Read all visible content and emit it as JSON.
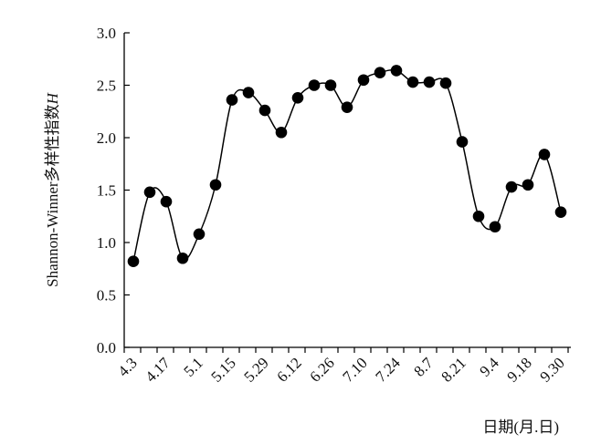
{
  "chart_data": {
    "type": "line",
    "title": "",
    "xlabel": "日期(月.日)",
    "ylabel": "Shannon-Winner多样性指数",
    "ylabel_symbol": "H",
    "ylim": [
      0,
      3.0
    ],
    "yticks": [
      "0.0",
      "0.5",
      "1.0",
      "1.5",
      "2.0",
      "2.5",
      "3.0"
    ],
    "xtick_labels": [
      "4.3",
      "4.17",
      "5.1",
      "5.15",
      "5.29",
      "6.12",
      "6.26",
      "7.10",
      "7.24",
      "8.7",
      "8.21",
      "9.4",
      "9.18",
      "9.30"
    ],
    "grid": false,
    "legend": "none",
    "marker_color": "#000000",
    "line_color": "#000000",
    "series": [
      {
        "values": [
          0.82,
          1.48,
          1.39,
          0.85,
          1.08,
          1.55,
          2.36,
          2.43,
          2.26,
          2.05,
          2.38,
          2.5,
          2.5,
          2.29,
          2.55,
          2.62,
          2.64,
          2.53,
          2.53,
          2.52,
          1.96,
          1.25,
          1.15,
          1.53,
          1.55,
          1.84,
          1.29
        ]
      }
    ]
  }
}
